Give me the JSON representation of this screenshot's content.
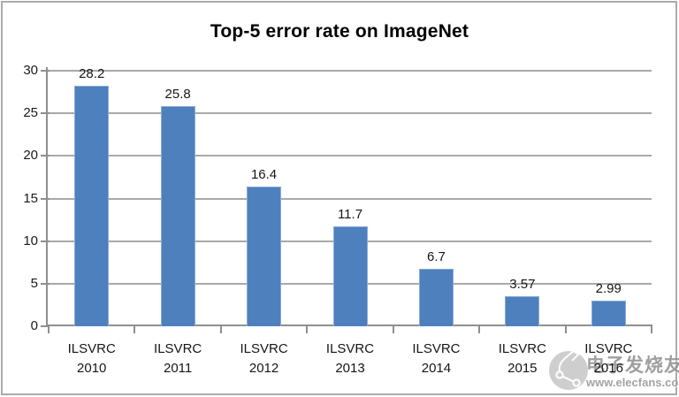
{
  "chart_data": {
    "type": "bar",
    "title": "Top-5 error rate on ImageNet",
    "categories": [
      "ILSVRC 2010",
      "ILSVRC 2011",
      "ILSVRC 2012",
      "ILSVRC 2013",
      "ILSVRC 2014",
      "ILSVRC 2015",
      "ILSVRC 2016"
    ],
    "values": [
      28.2,
      25.8,
      16.4,
      11.7,
      6.7,
      3.57,
      2.99
    ],
    "value_labels": [
      "28.2",
      "25.8",
      "16.4",
      "11.7",
      "6.7",
      "3.57",
      "2.99"
    ],
    "xlabel": "",
    "ylabel": "",
    "ylim": [
      0,
      30
    ],
    "yticks": [
      0,
      5,
      10,
      15,
      20,
      25,
      30
    ],
    "grid": "horizontal",
    "legend": "none",
    "bar_color": "#4d80bd",
    "bar_border_color": "#8aabd6",
    "gridline_color": "#a9a9a9",
    "axis_color": "#8f8f8f",
    "text_color": "#161616",
    "frame_border_color": "#ababab"
  },
  "watermark": {
    "site_name": "电子发烧友",
    "url": "www.elecfans.com",
    "logo_icon": "elecfans-circuit-logo",
    "color": "#8f8f8f"
  }
}
